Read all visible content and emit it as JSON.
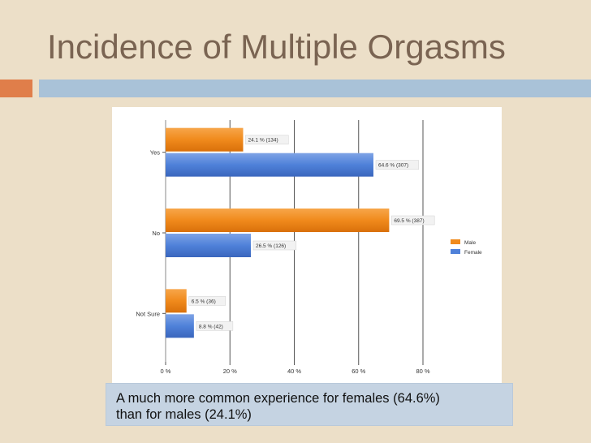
{
  "slide": {
    "title": "Incidence of Multiple Orgasms",
    "caption_line1": "A much more common experience for females  (64.6%)",
    "caption_line2": "than for males (24.1%)"
  },
  "colors": {
    "background": "#ecdfc8",
    "title": "#7a6452",
    "accent": "#e07e4a",
    "rule": "#a9c2d8",
    "male": "#f08a1c",
    "female": "#4f81d9"
  },
  "chart_data": {
    "type": "bar",
    "orientation": "horizontal",
    "categories": [
      "Yes",
      "No",
      "Not Sure"
    ],
    "series": [
      {
        "name": "Male",
        "values": [
          24.1,
          69.5,
          6.5
        ],
        "labels": [
          "24.1 % (134)",
          "69.5 % (387)",
          "6.5 % (36)"
        ]
      },
      {
        "name": "Female",
        "values": [
          64.6,
          26.5,
          8.8
        ],
        "labels": [
          "64.6 % (307)",
          "26.5 % (126)",
          "8.8 % (42)"
        ]
      }
    ],
    "xlim": [
      0,
      80
    ],
    "x_ticks": [
      0,
      20,
      40,
      60,
      80
    ],
    "x_tick_labels": [
      "0 %",
      "20 %",
      "40 %",
      "60 %",
      "80 %"
    ],
    "grid": true,
    "legend_position": "right"
  }
}
